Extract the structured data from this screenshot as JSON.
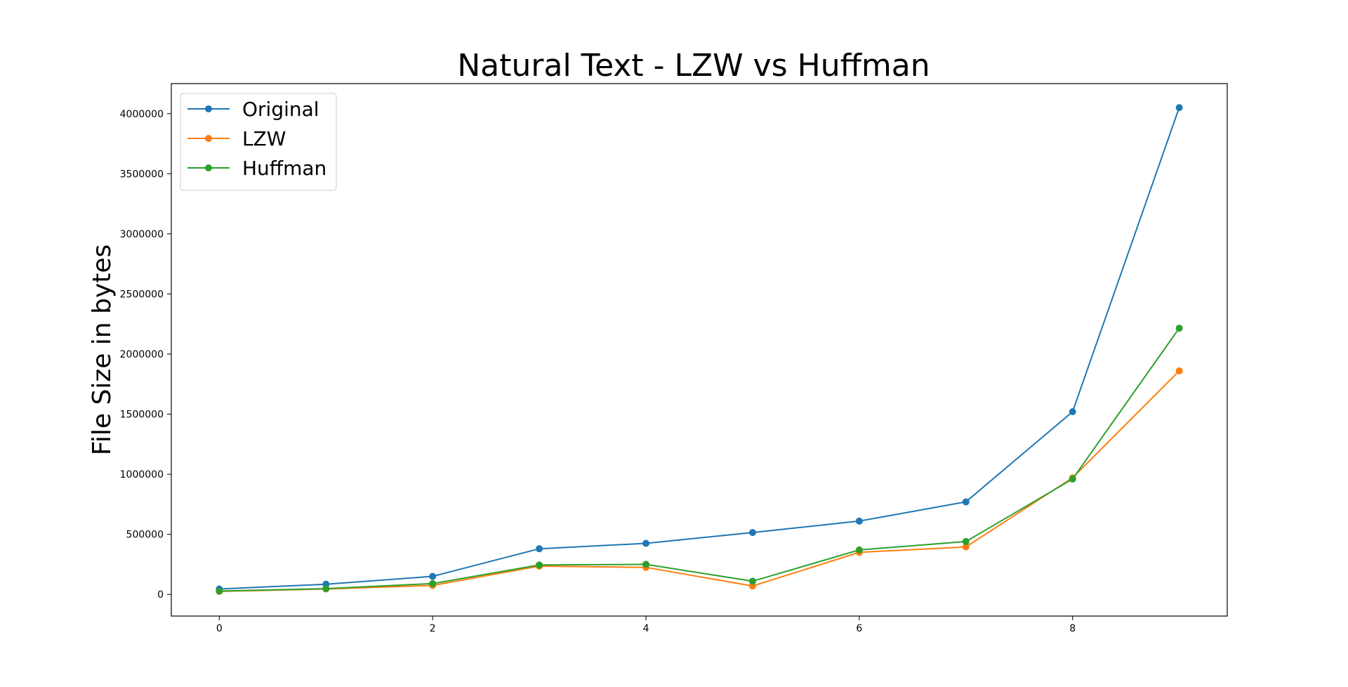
{
  "chart_data": {
    "type": "line",
    "title": "Natural Text - LZW vs Huffman",
    "xlabel": "",
    "ylabel": "File Size in bytes",
    "x": [
      0,
      1,
      2,
      3,
      4,
      5,
      6,
      7,
      8,
      9
    ],
    "xlim": [
      -0.45,
      9.45
    ],
    "ylim": [
      -180000,
      4250000
    ],
    "x_ticks": [
      0,
      2,
      4,
      6,
      8
    ],
    "y_ticks": [
      0,
      500000,
      1000000,
      1500000,
      2000000,
      2500000,
      3000000,
      3500000,
      4000000
    ],
    "grid": false,
    "legend_position": "top-left",
    "series": [
      {
        "name": "Original",
        "color": "#1f77b4",
        "values": [
          45000,
          85000,
          150000,
          380000,
          425000,
          515000,
          610000,
          770000,
          1520000,
          4050000
        ]
      },
      {
        "name": "LZW",
        "color": "#ff7f0e",
        "values": [
          25000,
          45000,
          75000,
          235000,
          225000,
          70000,
          350000,
          395000,
          970000,
          1860000
        ]
      },
      {
        "name": "Huffman",
        "color": "#2ca02c",
        "values": [
          28000,
          48000,
          90000,
          245000,
          250000,
          110000,
          370000,
          440000,
          960000,
          2215000
        ]
      }
    ]
  }
}
